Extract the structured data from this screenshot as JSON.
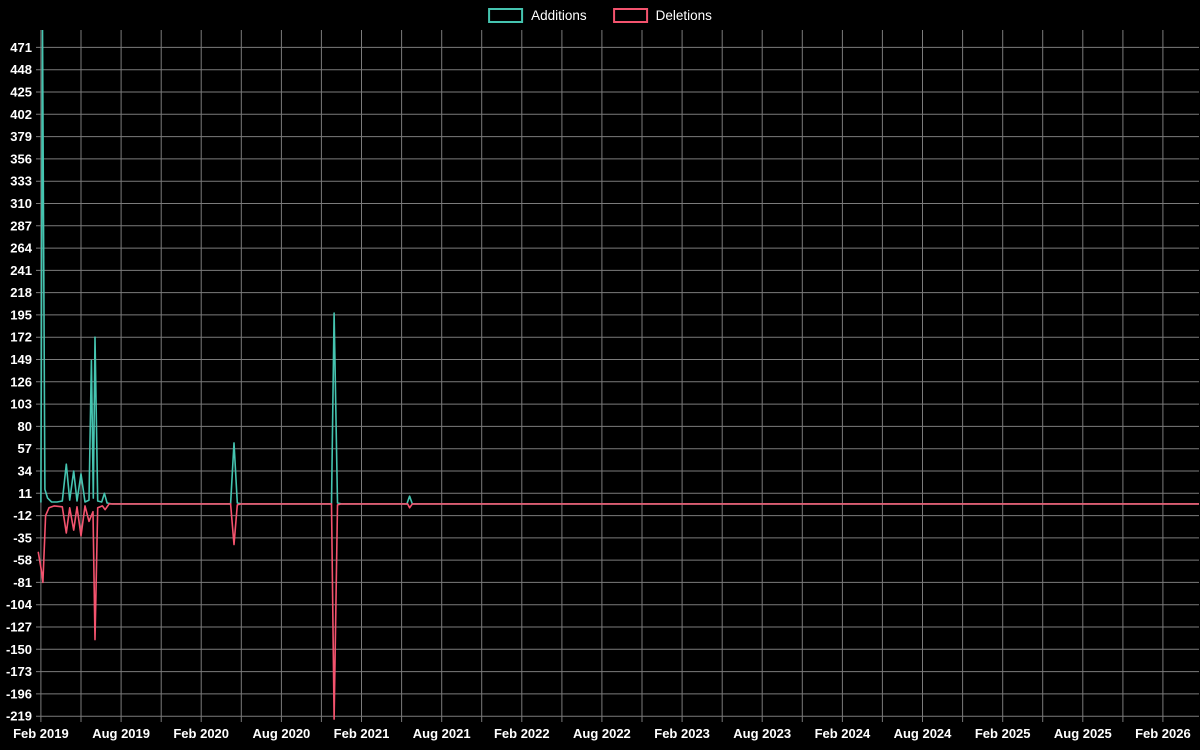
{
  "page": {
    "background": "#000000"
  },
  "chart_data": {
    "type": "line",
    "title": "",
    "legend_position": "top-center",
    "grid": true,
    "x_axis": {
      "unit": "months_since_feb_2019",
      "range_months": [
        -0.37,
        86.7
      ],
      "gridline_step_months": 3,
      "last_gridline_month": 84,
      "tick_step_months": 6,
      "tick_labels": [
        "Feb 2019",
        "Aug 2019",
        "Feb 2020",
        "Aug 2020",
        "Feb 2021",
        "Aug 2021",
        "Feb 2022",
        "Aug 2022",
        "Feb 2023",
        "Aug 2023",
        "Feb 2024",
        "Aug 2024",
        "Feb 2025",
        "Aug 2025",
        "Feb 2026"
      ]
    },
    "y_axis": {
      "range": [
        -225,
        489
      ],
      "tick_step": 23,
      "ticks": [
        471,
        448,
        425,
        402,
        379,
        356,
        333,
        310,
        287,
        264,
        241,
        218,
        195,
        172,
        149,
        126,
        103,
        80,
        57,
        34,
        11,
        -12,
        -35,
        -58,
        -81,
        -104,
        -127,
        -150,
        -173,
        -196,
        -219
      ]
    },
    "colors": {
      "grid": "#7b7b7b",
      "text": "#ffffff",
      "background": "#000000"
    },
    "series": [
      {
        "name": "Additions",
        "color": "#45c4b0",
        "points": [
          [
            0.0,
            2
          ],
          [
            0.12,
            492
          ],
          [
            0.3,
            15
          ],
          [
            0.5,
            6
          ],
          [
            0.8,
            2
          ],
          [
            1.2,
            2
          ],
          [
            1.6,
            3
          ],
          [
            1.9,
            41
          ],
          [
            2.15,
            4
          ],
          [
            2.45,
            34
          ],
          [
            2.7,
            3
          ],
          [
            3.0,
            31
          ],
          [
            3.3,
            2
          ],
          [
            3.6,
            4
          ],
          [
            3.78,
            148
          ],
          [
            3.92,
            6
          ],
          [
            4.05,
            172
          ],
          [
            4.25,
            3
          ],
          [
            4.55,
            2
          ],
          [
            4.75,
            11
          ],
          [
            4.95,
            1
          ],
          [
            5.3,
            0
          ],
          [
            14.2,
            0
          ],
          [
            14.45,
            63
          ],
          [
            14.7,
            1
          ],
          [
            15.0,
            0
          ],
          [
            21.75,
            0
          ],
          [
            21.95,
            197
          ],
          [
            22.2,
            1
          ],
          [
            22.5,
            0
          ],
          [
            27.4,
            0
          ],
          [
            27.6,
            8
          ],
          [
            27.8,
            0
          ],
          [
            86.7,
            0
          ]
        ]
      },
      {
        "name": "Deletions",
        "color": "#f4536e",
        "points": [
          [
            -0.2,
            -50
          ],
          [
            0.05,
            -70
          ],
          [
            0.15,
            -81
          ],
          [
            0.35,
            -12
          ],
          [
            0.6,
            -4
          ],
          [
            1.0,
            -2
          ],
          [
            1.6,
            -3
          ],
          [
            1.9,
            -30
          ],
          [
            2.15,
            -4
          ],
          [
            2.45,
            -27
          ],
          [
            2.7,
            -3
          ],
          [
            3.0,
            -33
          ],
          [
            3.3,
            -2
          ],
          [
            3.6,
            -18
          ],
          [
            3.9,
            -8
          ],
          [
            4.05,
            -140
          ],
          [
            4.25,
            -4
          ],
          [
            4.6,
            -2
          ],
          [
            4.8,
            -6
          ],
          [
            5.1,
            0
          ],
          [
            14.2,
            0
          ],
          [
            14.45,
            -42
          ],
          [
            14.7,
            -1
          ],
          [
            15.0,
            0
          ],
          [
            21.75,
            0
          ],
          [
            21.95,
            -222
          ],
          [
            22.2,
            -1
          ],
          [
            22.5,
            0
          ],
          [
            27.45,
            0
          ],
          [
            27.6,
            -4
          ],
          [
            27.8,
            0
          ],
          [
            86.7,
            0
          ]
        ]
      }
    ]
  }
}
